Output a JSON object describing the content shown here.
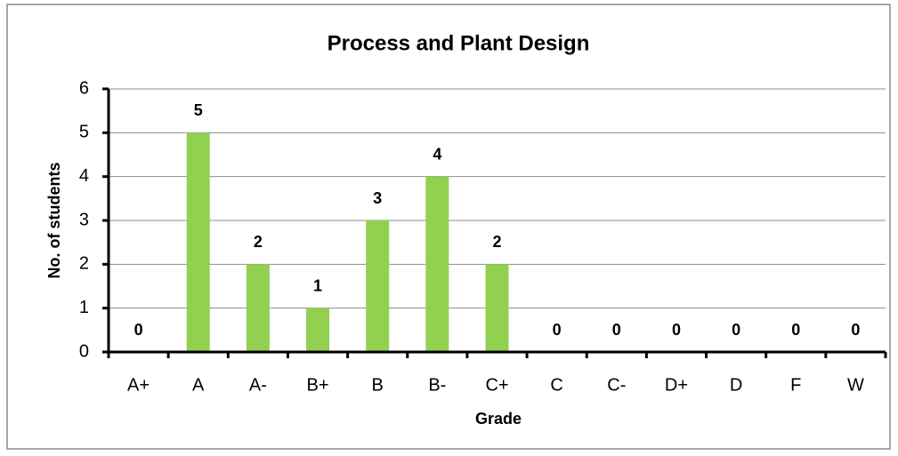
{
  "chart_data": {
    "type": "bar",
    "title": "Process and Plant Design",
    "categories": [
      "A+",
      "A",
      "A-",
      "B+",
      "B",
      "B-",
      "C+",
      "C",
      "C-",
      "D+",
      "D",
      "F",
      "W"
    ],
    "values": [
      0,
      5,
      2,
      1,
      3,
      4,
      2,
      0,
      0,
      0,
      0,
      0,
      0
    ],
    "color": "#92d050",
    "x_label": "Grade",
    "y_label": "No. of students",
    "ylim": [
      0,
      6
    ],
    "yticks": [
      0,
      1,
      2,
      3,
      4,
      5,
      6
    ],
    "grid": true
  }
}
